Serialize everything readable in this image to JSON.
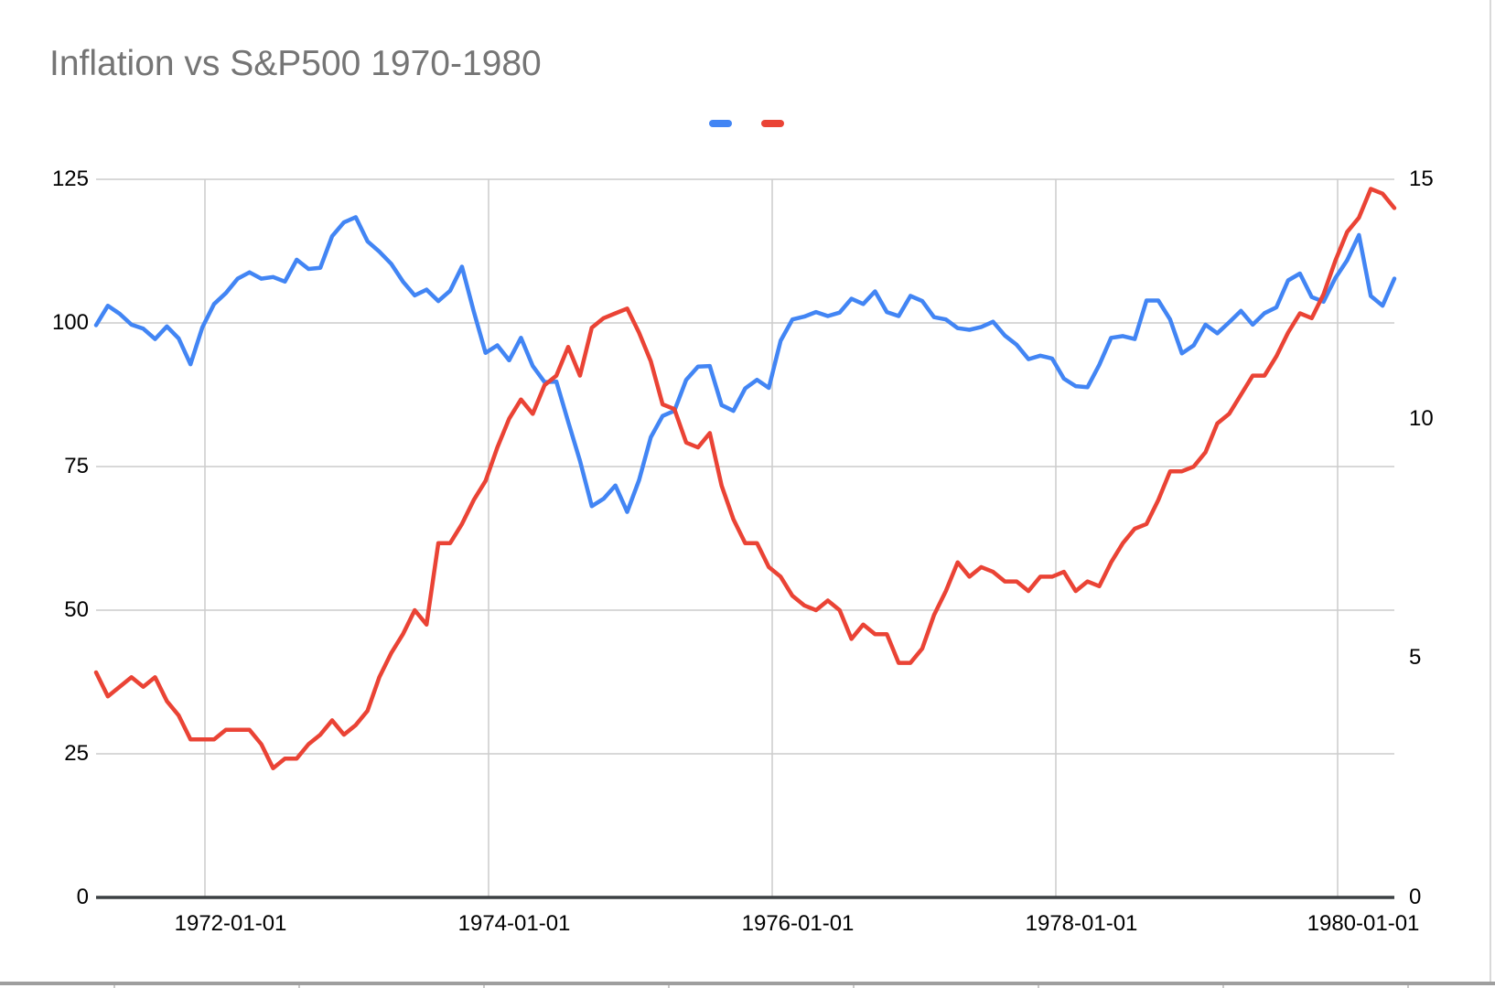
{
  "title": "Inflation vs S&P500 1970-1980",
  "legend": {
    "entries": [
      {
        "label": "",
        "color": "#4285F4"
      },
      {
        "label": "",
        "color": "#EA4335"
      }
    ]
  },
  "axes": {
    "left": {
      "ticks": [
        0,
        25,
        50,
        75,
        100,
        125
      ],
      "max": 125
    },
    "right": {
      "ticks": [
        0,
        5,
        10,
        15
      ],
      "max": 15
    },
    "x": {
      "tick_labels": [
        "1972-01-01",
        "1974-01-01",
        "1976-01-01",
        "1978-01-01",
        "1980-01-01"
      ]
    }
  },
  "colors": {
    "series1": "#4285F4",
    "series2": "#EA4335",
    "gridline": "#cccccc",
    "axis_line": "#3c4043",
    "tick_text": "#000000",
    "title_text": "#757575",
    "sheet_border": "#9e9e9e"
  },
  "chart_data": {
    "type": "line",
    "title": "Inflation vs S&P500 1970-1980",
    "grid": true,
    "legend_position": "top-center",
    "left_ylim": [
      0,
      125
    ],
    "right_ylim": [
      0,
      15
    ],
    "x_tick_labels": [
      "1972-01-01",
      "1974-01-01",
      "1976-01-01",
      "1978-01-01",
      "1980-01-01"
    ],
    "x": [
      "1971-03",
      "1971-04",
      "1971-05",
      "1971-06",
      "1971-07",
      "1971-08",
      "1971-09",
      "1971-10",
      "1971-11",
      "1971-12",
      "1972-01",
      "1972-02",
      "1972-03",
      "1972-04",
      "1972-05",
      "1972-06",
      "1972-07",
      "1972-08",
      "1972-09",
      "1972-10",
      "1972-11",
      "1972-12",
      "1973-01",
      "1973-02",
      "1973-03",
      "1973-04",
      "1973-05",
      "1973-06",
      "1973-07",
      "1973-08",
      "1973-09",
      "1973-10",
      "1973-11",
      "1973-12",
      "1974-01",
      "1974-02",
      "1974-03",
      "1974-04",
      "1974-05",
      "1974-06",
      "1974-07",
      "1974-08",
      "1974-09",
      "1974-10",
      "1974-11",
      "1974-12",
      "1975-01",
      "1975-02",
      "1975-03",
      "1975-04",
      "1975-05",
      "1975-06",
      "1975-07",
      "1975-08",
      "1975-09",
      "1975-10",
      "1975-11",
      "1975-12",
      "1976-01",
      "1976-02",
      "1976-03",
      "1976-04",
      "1976-05",
      "1976-06",
      "1976-07",
      "1976-08",
      "1976-09",
      "1976-10",
      "1976-11",
      "1976-12",
      "1977-01",
      "1977-02",
      "1977-03",
      "1977-04",
      "1977-05",
      "1977-06",
      "1977-07",
      "1977-08",
      "1977-09",
      "1977-10",
      "1977-11",
      "1977-12",
      "1978-01",
      "1978-02",
      "1978-03",
      "1978-04",
      "1978-05",
      "1978-06",
      "1978-07",
      "1978-08",
      "1978-09",
      "1978-10",
      "1978-11",
      "1978-12",
      "1979-01",
      "1979-02",
      "1979-03",
      "1979-04",
      "1979-05",
      "1979-06",
      "1979-07",
      "1979-08",
      "1979-09",
      "1979-10",
      "1979-11",
      "1979-12",
      "1980-01",
      "1980-02",
      "1980-03",
      "1980-04",
      "1980-05"
    ],
    "series": [
      {
        "name": "S&P500",
        "axis": "left",
        "color": "#4285F4",
        "values": [
          99.6,
          103.0,
          101.6,
          99.7,
          99.0,
          97.2,
          99.4,
          97.3,
          92.8,
          99.2,
          103.3,
          105.2,
          107.7,
          108.8,
          107.7,
          108.0,
          107.2,
          111.0,
          109.4,
          109.6,
          115.1,
          117.5,
          118.4,
          114.2,
          112.4,
          110.3,
          107.2,
          104.8,
          105.8,
          103.8,
          105.6,
          109.8,
          102.0,
          94.8,
          96.1,
          93.5,
          97.4,
          92.5,
          89.7,
          89.8,
          82.8,
          76.0,
          68.1,
          69.4,
          71.7,
          67.1,
          72.6,
          80.1,
          83.8,
          84.7,
          90.1,
          92.4,
          92.5,
          85.7,
          84.7,
          88.6,
          90.1,
          88.7,
          96.9,
          100.6,
          101.1,
          101.9,
          101.2,
          101.8,
          104.2,
          103.3,
          105.5,
          101.9,
          101.2,
          104.7,
          103.8,
          101.0,
          100.6,
          99.1,
          98.8,
          99.3,
          100.2,
          97.8,
          96.2,
          93.7,
          94.3,
          93.8,
          90.3,
          89.0,
          88.8,
          92.7,
          97.4,
          97.7,
          97.2,
          103.9,
          103.9,
          100.6,
          94.7,
          96.1,
          99.7,
          98.2,
          100.1,
          102.1,
          99.7,
          101.7,
          102.7,
          107.4,
          108.6,
          104.5,
          103.7,
          107.8,
          110.9,
          115.3,
          104.7,
          103.0,
          107.7
        ]
      },
      {
        "name": "Inflation",
        "axis": "right",
        "color": "#EA4335",
        "values": [
          4.7,
          4.2,
          4.4,
          4.6,
          4.4,
          4.6,
          4.1,
          3.8,
          3.3,
          3.3,
          3.3,
          3.5,
          3.5,
          3.5,
          3.2,
          2.7,
          2.9,
          2.9,
          3.2,
          3.4,
          3.7,
          3.4,
          3.6,
          3.9,
          4.6,
          5.1,
          5.5,
          6.0,
          5.7,
          7.4,
          7.4,
          7.8,
          8.3,
          8.7,
          9.4,
          10.0,
          10.4,
          10.1,
          10.7,
          10.9,
          11.5,
          10.9,
          11.9,
          12.1,
          12.2,
          12.3,
          11.8,
          11.2,
          10.3,
          10.2,
          9.5,
          9.4,
          9.7,
          8.6,
          7.9,
          7.4,
          7.4,
          6.9,
          6.7,
          6.3,
          6.1,
          6.0,
          6.2,
          6.0,
          5.4,
          5.7,
          5.5,
          5.5,
          4.9,
          4.9,
          5.2,
          5.9,
          6.4,
          7.0,
          6.7,
          6.9,
          6.8,
          6.6,
          6.6,
          6.4,
          6.7,
          6.7,
          6.8,
          6.4,
          6.6,
          6.5,
          7.0,
          7.4,
          7.7,
          7.8,
          8.3,
          8.9,
          8.9,
          9.0,
          9.3,
          9.9,
          10.1,
          10.5,
          10.9,
          10.9,
          11.3,
          11.8,
          12.2,
          12.1,
          12.6,
          13.3,
          13.9,
          14.2,
          14.8,
          14.7,
          14.4
        ]
      }
    ]
  }
}
